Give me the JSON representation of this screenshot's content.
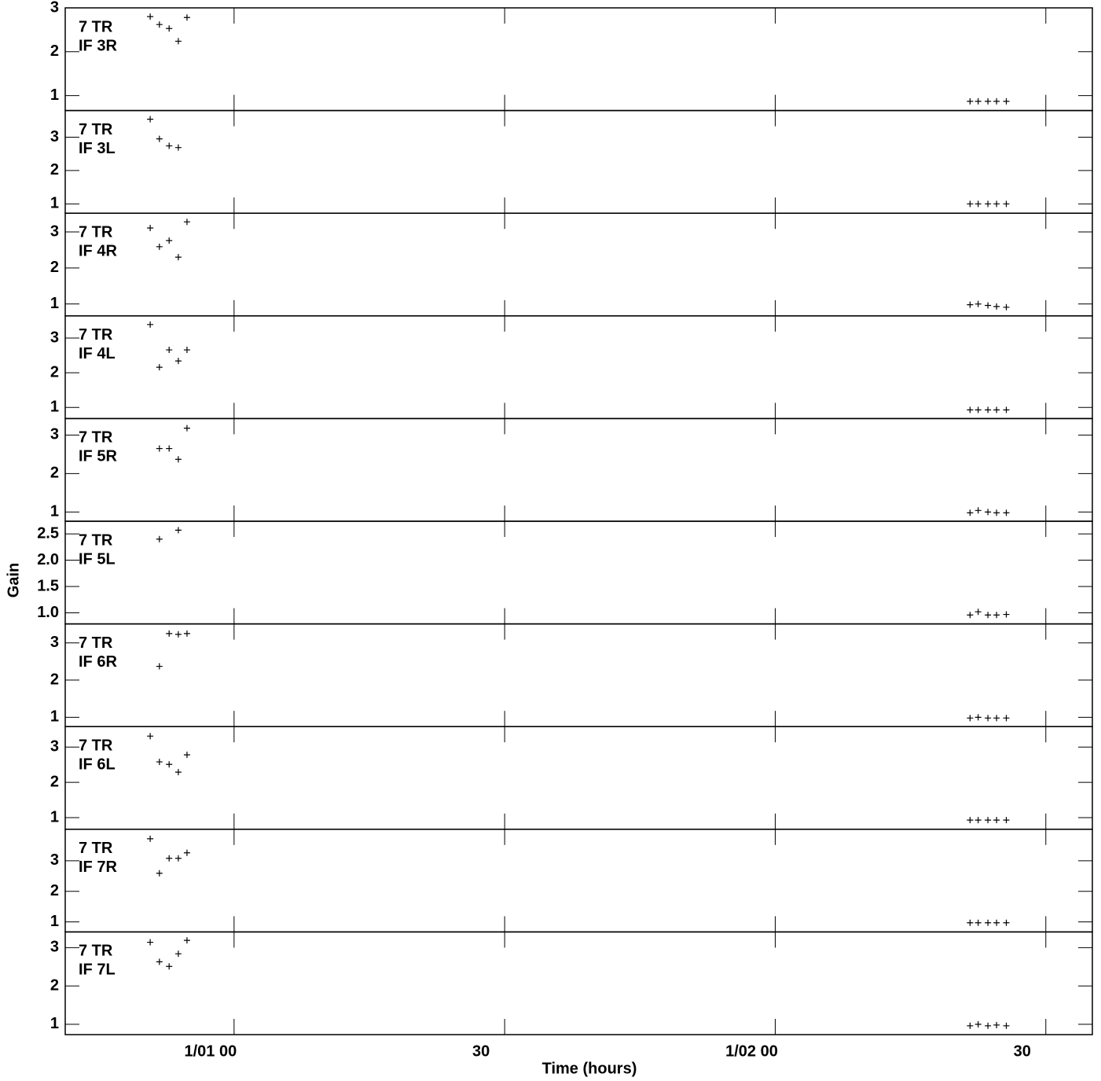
{
  "y_label": "Gain",
  "x_label": "Time (hours)",
  "chart_data": [
    {
      "type": "scatter",
      "antenna": "7 TR",
      "label": "IF 3R",
      "x": [
        0.845,
        0.862,
        0.88,
        0.897,
        0.913,
        2.36,
        2.375,
        2.393,
        2.409,
        2.427
      ],
      "values": [
        2.8,
        2.62,
        2.53,
        2.24,
        2.78,
        0.87,
        0.87,
        0.87,
        0.87,
        0.87
      ],
      "xlim": [
        0.688,
        2.586
      ],
      "xticks": [
        {
          "value": 1,
          "label": "1/01 00"
        },
        {
          "value": 1.5,
          "label": "30"
        },
        {
          "value": 2,
          "label": "1/02 00"
        },
        {
          "value": 2.5,
          "label": "30"
        }
      ],
      "ylim": [
        0.66,
        3.0
      ],
      "yticks": [
        1,
        2,
        3
      ],
      "color": "#000000"
    },
    {
      "type": "scatter",
      "antenna": "7 TR",
      "label": "IF 3L",
      "x": [
        0.845,
        0.862,
        0.88,
        0.897,
        0.913,
        2.36,
        2.375,
        2.393,
        2.409,
        2.427
      ],
      "values": [
        3.54,
        2.95,
        2.74,
        2.69,
        null,
        1.0,
        1.0,
        1.0,
        1.0,
        1.0
      ],
      "xlim": [
        0.688,
        2.586
      ],
      "xticks": [
        {
          "value": 1,
          "label": "1/01 00"
        },
        {
          "value": 1.5,
          "label": "30"
        },
        {
          "value": 2,
          "label": "1/02 00"
        },
        {
          "value": 2.5,
          "label": "30"
        }
      ],
      "ylim": [
        0.72,
        3.8
      ],
      "yticks": [
        1,
        2,
        3
      ],
      "color": "#000000"
    },
    {
      "type": "scatter",
      "antenna": "7 TR",
      "label": "IF 4R",
      "x": [
        0.845,
        0.862,
        0.88,
        0.897,
        0.913,
        2.36,
        2.375,
        2.393,
        2.409,
        2.427
      ],
      "values": [
        3.11,
        2.59,
        2.76,
        2.3,
        3.28,
        0.98,
        1.0,
        0.96,
        0.93,
        0.91
      ],
      "xlim": [
        0.688,
        2.586
      ],
      "xticks": [
        {
          "value": 1,
          "label": "1/01 00"
        },
        {
          "value": 1.5,
          "label": "30"
        },
        {
          "value": 2,
          "label": "1/02 00"
        },
        {
          "value": 2.5,
          "label": "30"
        }
      ],
      "ylim": [
        0.67,
        3.52
      ],
      "yticks": [
        1,
        2,
        3
      ],
      "color": "#000000"
    },
    {
      "type": "scatter",
      "antenna": "7 TR",
      "label": "IF 4L",
      "x": [
        0.845,
        0.862,
        0.88,
        0.897,
        0.913,
        2.36,
        2.375,
        2.393,
        2.409,
        2.427
      ],
      "values": [
        3.39,
        2.16,
        2.66,
        2.34,
        2.66,
        0.93,
        0.93,
        0.93,
        0.93,
        0.93
      ],
      "xlim": [
        0.688,
        2.586
      ],
      "xticks": [
        {
          "value": 1,
          "label": "1/01 00"
        },
        {
          "value": 1.5,
          "label": "30"
        },
        {
          "value": 2,
          "label": "1/02 00"
        },
        {
          "value": 2.5,
          "label": "30"
        }
      ],
      "ylim": [
        0.68,
        3.64
      ],
      "yticks": [
        1,
        2,
        3
      ],
      "color": "#000000"
    },
    {
      "type": "scatter",
      "antenna": "7 TR",
      "label": "IF 5R",
      "x": [
        0.845,
        0.862,
        0.88,
        0.897,
        0.913,
        2.36,
        2.375,
        2.393,
        2.409,
        2.427
      ],
      "values": [
        null,
        2.65,
        2.65,
        2.37,
        3.18,
        0.98,
        1.04,
        1.0,
        0.98,
        0.98
      ],
      "xlim": [
        0.688,
        2.586
      ],
      "xticks": [
        {
          "value": 1,
          "label": "1/01 00"
        },
        {
          "value": 1.5,
          "label": "30"
        },
        {
          "value": 2,
          "label": "1/02 00"
        },
        {
          "value": 2.5,
          "label": "30"
        }
      ],
      "ylim": [
        0.76,
        3.43
      ],
      "yticks": [
        1,
        2,
        3
      ],
      "color": "#000000"
    },
    {
      "type": "scatter",
      "antenna": "7 TR",
      "label": "IF 5L",
      "x": [
        0.845,
        0.862,
        0.88,
        0.897,
        0.913,
        2.36,
        2.375,
        2.393,
        2.409,
        2.427
      ],
      "values": [
        null,
        2.4,
        null,
        2.57,
        null,
        0.96,
        1.02,
        0.96,
        0.96,
        0.97
      ],
      "xlim": [
        0.688,
        2.586
      ],
      "xticks": [
        {
          "value": 1,
          "label": "1/01 00"
        },
        {
          "value": 1.5,
          "label": "30"
        },
        {
          "value": 2,
          "label": "1/02 00"
        },
        {
          "value": 2.5,
          "label": "30"
        }
      ],
      "ylim": [
        0.79,
        2.74
      ],
      "yticks": [
        {
          "value": 1,
          "label": "1.0"
        },
        1.5,
        {
          "value": 2,
          "label": "2.0"
        },
        2.5
      ],
      "color": "#000000"
    },
    {
      "type": "scatter",
      "antenna": "7 TR",
      "label": "IF 6R",
      "x": [
        0.845,
        0.862,
        0.88,
        0.897,
        0.913,
        2.36,
        2.375,
        2.393,
        2.409,
        2.427
      ],
      "values": [
        null,
        2.37,
        3.25,
        3.23,
        3.25,
        0.98,
        1.0,
        0.98,
        0.98,
        0.98
      ],
      "xlim": [
        0.688,
        2.586
      ],
      "xticks": [
        {
          "value": 1,
          "label": "1/01 00"
        },
        {
          "value": 1.5,
          "label": "30"
        },
        {
          "value": 2,
          "label": "1/02 00"
        },
        {
          "value": 2.5,
          "label": "30"
        }
      ],
      "ylim": [
        0.75,
        3.51
      ],
      "yticks": [
        1,
        2,
        3
      ],
      "color": "#000000"
    },
    {
      "type": "scatter",
      "antenna": "7 TR",
      "label": "IF 6L",
      "x": [
        0.845,
        0.862,
        0.88,
        0.897,
        0.913,
        2.36,
        2.375,
        2.393,
        2.409,
        2.427
      ],
      "values": [
        3.31,
        2.58,
        2.51,
        2.29,
        2.78,
        0.93,
        0.93,
        0.93,
        0.93,
        0.93
      ],
      "xlim": [
        0.688,
        2.586
      ],
      "xticks": [
        {
          "value": 1,
          "label": "1/01 00"
        },
        {
          "value": 1.5,
          "label": "30"
        },
        {
          "value": 2,
          "label": "1/02 00"
        },
        {
          "value": 2.5,
          "label": "30"
        }
      ],
      "ylim": [
        0.67,
        3.58
      ],
      "yticks": [
        1,
        2,
        3
      ],
      "color": "#000000"
    },
    {
      "type": "scatter",
      "antenna": "7 TR",
      "label": "IF 7R",
      "x": [
        0.845,
        0.862,
        0.88,
        0.897,
        0.913,
        2.36,
        2.375,
        2.393,
        2.409,
        2.427
      ],
      "values": [
        3.72,
        2.59,
        3.08,
        3.08,
        3.26,
        0.97,
        0.97,
        0.97,
        0.97,
        0.97
      ],
      "xlim": [
        0.688,
        2.586
      ],
      "xticks": [
        {
          "value": 1,
          "label": "1/01 00"
        },
        {
          "value": 1.5,
          "label": "30"
        },
        {
          "value": 2,
          "label": "1/02 00"
        },
        {
          "value": 2.5,
          "label": "30"
        }
      ],
      "ylim": [
        0.67,
        4.03
      ],
      "yticks": [
        1,
        2,
        3
      ],
      "color": "#000000"
    },
    {
      "type": "scatter",
      "antenna": "7 TR",
      "label": "IF 7L",
      "x": [
        0.845,
        0.862,
        0.88,
        0.897,
        0.913,
        2.36,
        2.375,
        2.393,
        2.409,
        2.427
      ],
      "values": [
        3.14,
        2.63,
        2.51,
        2.84,
        3.19,
        0.96,
        1.0,
        0.96,
        0.98,
        0.96
      ],
      "xlim": [
        0.688,
        2.586
      ],
      "xticks": [
        {
          "value": 1,
          "label": "1/01 00"
        },
        {
          "value": 1.5,
          "label": "30"
        },
        {
          "value": 2,
          "label": "1/02 00"
        },
        {
          "value": 2.5,
          "label": "30"
        }
      ],
      "ylim": [
        0.73,
        3.41
      ],
      "yticks": [
        1,
        2,
        3
      ],
      "color": "#000000"
    }
  ]
}
